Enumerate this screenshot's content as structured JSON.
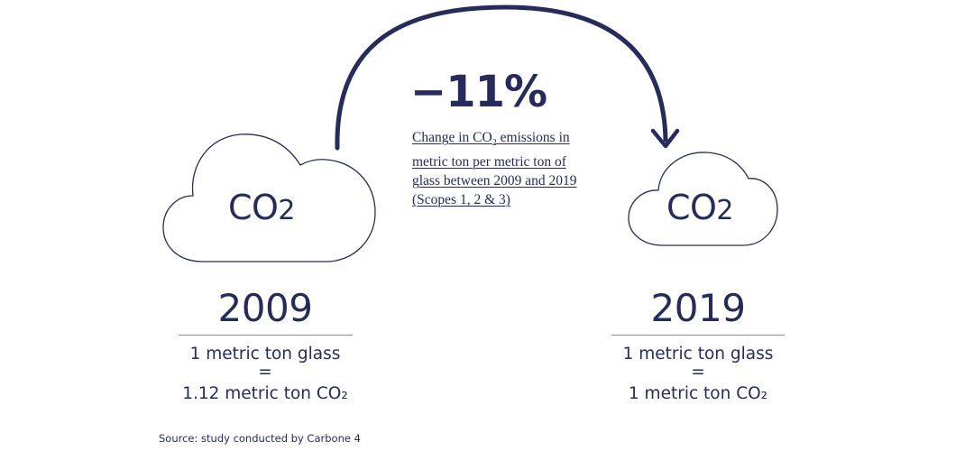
{
  "change": {
    "value": "−11%",
    "description": {
      "line1_pre": "Change in CO",
      "line1_sub": "2",
      "line1_post": " emissions in",
      "line2": "metric ton per metric ton of",
      "line3": "glass between 2009 and 2019",
      "line4": "(Scopes 1, 2 & 3)"
    }
  },
  "left": {
    "cloud_label_main": "CO",
    "cloud_label_sub": "2",
    "year": "2009",
    "line1": "1 metric ton glass",
    "equals": "=",
    "line2": "1.12 metric ton CO₂"
  },
  "right": {
    "cloud_label_main": "CO",
    "cloud_label_sub": "2",
    "year": "2019",
    "line1": "1 metric ton glass",
    "equals": "=",
    "line2": "1 metric ton CO₂"
  },
  "source": "Source: study conducted by Carbone 4",
  "colors": {
    "ink": "#262b5e",
    "cloud_stroke": "#262b5e",
    "rule": "#8a8da8"
  },
  "icons": {
    "left_cloud": "cloud-icon",
    "right_cloud": "cloud-icon",
    "arrow": "curved-arrow-icon"
  }
}
